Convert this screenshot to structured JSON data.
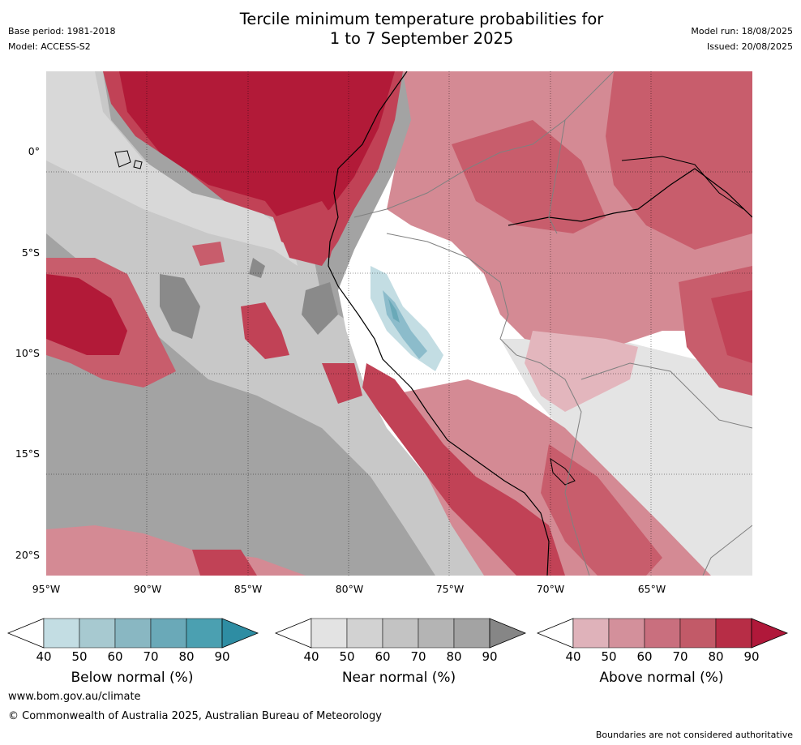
{
  "header": {
    "base_period": "Base period: 1981-2018",
    "model": "Model: ACCESS-S2",
    "title_line1": "Tercile minimum temperature probabilities for",
    "title_line2": "1 to 7 September 2025",
    "model_run": "Model run: 18/08/2025",
    "issued": "Issued: 20/08/2025"
  },
  "map": {
    "lat_labels": [
      "0°",
      "5°S",
      "10°S",
      "15°S",
      "20°S"
    ],
    "lon_labels": [
      "95°W",
      "90°W",
      "85°W",
      "80°W",
      "75°W",
      "70°W",
      "65°W"
    ],
    "colors": {
      "near_fill": "#a3a3a3",
      "ocean_gray_dark": "#8a8a8a",
      "above_60": "#d48a94",
      "above_70": "#c85d6c",
      "above_80": "#c14256",
      "above_90": "#b21a38",
      "below_60": "#8cbccb",
      "below_70": "#6aa9b8"
    }
  },
  "colorbars": [
    {
      "name": "below",
      "title": "Below normal (%)",
      "ticks": [
        "40",
        "50",
        "60",
        "70",
        "80",
        "90"
      ],
      "colors": [
        "#c3dde3",
        "#a7c9d0",
        "#89b7c2",
        "#6aa9b8",
        "#4ba0b1",
        "#2e8da3"
      ]
    },
    {
      "name": "near",
      "title": "Near normal (%)",
      "ticks": [
        "40",
        "50",
        "60",
        "70",
        "80",
        "90"
      ],
      "colors": [
        "#e3e3e3",
        "#d2d2d2",
        "#c3c3c3",
        "#b4b4b4",
        "#a3a3a3",
        "#868686"
      ]
    },
    {
      "name": "above",
      "title": "Above normal (%)",
      "ticks": [
        "40",
        "50",
        "60",
        "70",
        "80",
        "90"
      ],
      "colors": [
        "#dfb2ba",
        "#d3909b",
        "#c96f7e",
        "#c25a68",
        "#b72d46",
        "#b0183a"
      ]
    }
  ],
  "footer": {
    "website": "www.bom.gov.au/climate",
    "copyright": "© Commonwealth of Australia 2025, Australian Bureau of Meteorology",
    "disclaimer": "Boundaries are not considered authoritative"
  }
}
